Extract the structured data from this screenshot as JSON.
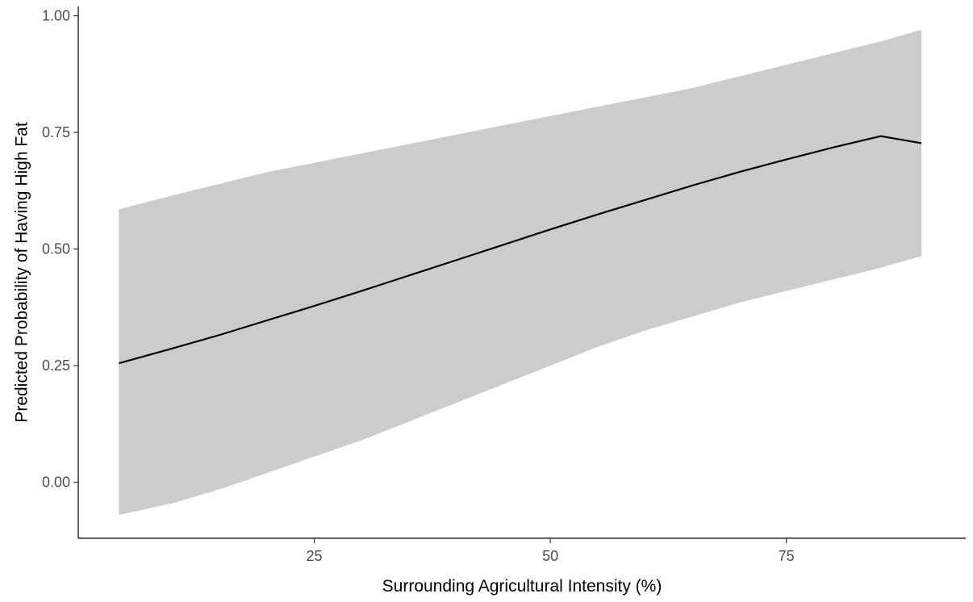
{
  "chart_data": {
    "type": "line",
    "title": "",
    "xlabel": "Surrounding Agricultural Intensity (%)",
    "ylabel": "Predicted Probability of Having High Fat",
    "xlim": [
      0,
      94
    ],
    "ylim": [
      -0.12,
      1.02
    ],
    "xticks": [
      25,
      50,
      75
    ],
    "xtick_labels": [
      "25",
      "50",
      "75"
    ],
    "yticks": [
      0,
      0.25,
      0.5,
      0.75,
      1
    ],
    "ytick_labels": [
      "0.00",
      "0.25",
      "0.50",
      "0.75",
      "1.00"
    ],
    "grid": false,
    "legend": "none",
    "series": [
      {
        "x": [
          4.3,
          10,
          15,
          20,
          25,
          30,
          35,
          40,
          45,
          50,
          55,
          60,
          65,
          70,
          75,
          80,
          85,
          89.3
        ],
        "y": [
          0.255,
          0.287,
          0.316,
          0.347,
          0.378,
          0.41,
          0.443,
          0.476,
          0.509,
          0.542,
          0.574,
          0.605,
          0.636,
          0.665,
          0.692,
          0.718,
          0.742,
          0.727
        ],
        "ci_lower": [
          -0.07,
          -0.045,
          -0.015,
          0.02,
          0.055,
          0.09,
          0.13,
          0.17,
          0.21,
          0.25,
          0.29,
          0.325,
          0.355,
          0.385,
          0.41,
          0.435,
          0.46,
          0.485
        ],
        "ci_upper": [
          0.585,
          0.615,
          0.64,
          0.665,
          0.685,
          0.705,
          0.725,
          0.745,
          0.765,
          0.785,
          0.805,
          0.825,
          0.845,
          0.87,
          0.895,
          0.92,
          0.945,
          0.97
        ]
      }
    ],
    "colors": {
      "line": "#000000",
      "ribbon": "#cccccc",
      "axis": "#000000"
    }
  }
}
